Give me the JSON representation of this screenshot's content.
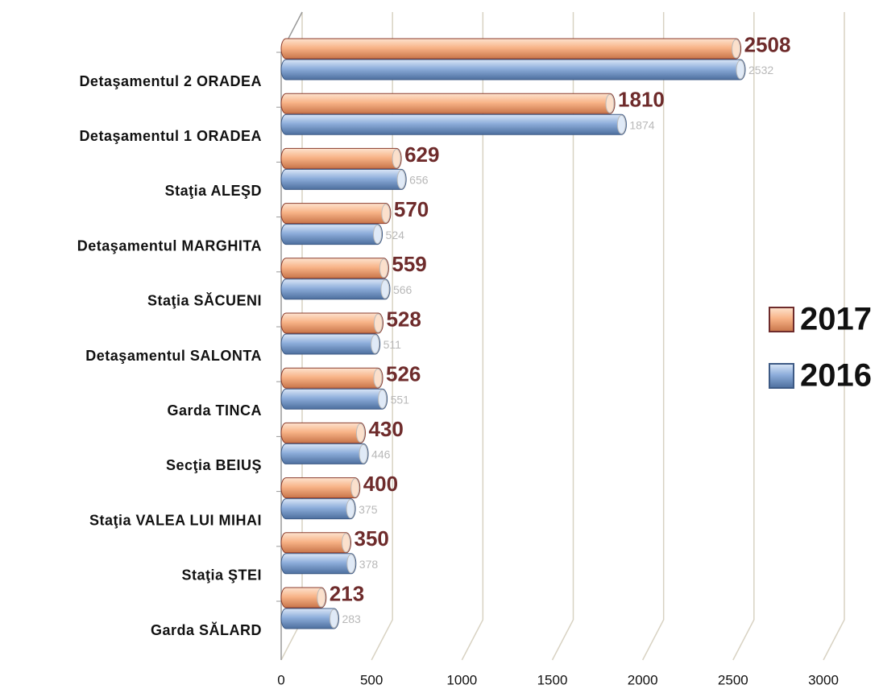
{
  "chart_data": {
    "type": "bar",
    "categories": [
      "Detaşamentul 2 ORADEA",
      "Detaşamentul 1 ORADEA",
      "Staţia ALEŞD",
      "Detaşamentul MARGHITA",
      "Staţia SĂCUENI",
      "Detaşamentul SALONTA",
      "Garda TINCA",
      "Secţia BEIUŞ",
      "Staţia VALEA LUI MIHAI",
      "Staţia ŞTEI",
      "Garda SĂLARD"
    ],
    "series": [
      {
        "name": "2017",
        "color": "#f8b488",
        "values": [
          2508,
          1810,
          629,
          570,
          559,
          528,
          526,
          430,
          400,
          350,
          213
        ]
      },
      {
        "name": "2016",
        "color": "#8eaedb",
        "values": [
          2532,
          1874,
          656,
          524,
          566,
          511,
          551,
          446,
          375,
          378,
          283
        ]
      }
    ],
    "xlim": [
      0,
      3000
    ],
    "xticks": [
      0,
      500,
      1000,
      1500,
      2000,
      2500,
      3000
    ],
    "grid": true,
    "legend": "right"
  }
}
